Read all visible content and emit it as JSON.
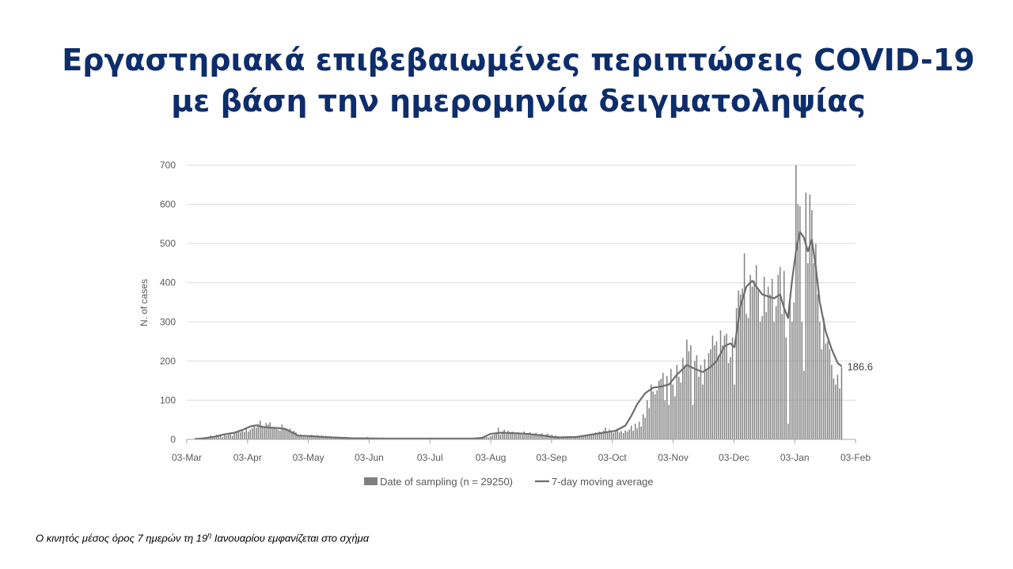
{
  "title": {
    "line1": "Εργαστηριακά επιβεβαιωμένες περιπτώσεις COVID-19",
    "line2": "με βάση την ημερομηνία δειγματοληψίας"
  },
  "footnote": {
    "before": "Ο κινητός μέσος όρος 7 ημερών τη 19",
    "sup": "η",
    "after": " Ιανουαρίου εμφανίζεται στο σχήμα"
  },
  "chart_data": {
    "type": "bar",
    "ylabel": "N. of cases",
    "ylim": [
      0,
      700
    ],
    "yticks": [
      0,
      100,
      200,
      300,
      400,
      500,
      600,
      700
    ],
    "x_range": [
      "2020-03-03",
      "2021-02-03"
    ],
    "xticks": [
      "03-Mar",
      "03-Apr",
      "03-May",
      "03-Jun",
      "03-Jul",
      "03-Aug",
      "03-Sep",
      "03-Oct",
      "03-Nov",
      "03-Dec",
      "03-Jan",
      "03-Feb"
    ],
    "grid": true,
    "legend_position": "bottom",
    "bar_color": "#808080",
    "line_color": "#6d6d6d",
    "series": [
      {
        "name": "Date of sampling (n = 29250)",
        "type": "bar",
        "start_date": "2020-03-07",
        "values": [
          1,
          0,
          2,
          1,
          3,
          2,
          4,
          2,
          10,
          6,
          5,
          12,
          8,
          9,
          6,
          14,
          10,
          12,
          15,
          9,
          17,
          16,
          20,
          18,
          22,
          19,
          31,
          20,
          25,
          28,
          35,
          30,
          40,
          48,
          35,
          30,
          42,
          38,
          44,
          32,
          28,
          30,
          25,
          22,
          38,
          30,
          26,
          24,
          28,
          20,
          22,
          18,
          12,
          10,
          8,
          9,
          6,
          10,
          8,
          12,
          9,
          7,
          11,
          8,
          10,
          7,
          9,
          6,
          8,
          7,
          6,
          5,
          7,
          6,
          5,
          4,
          6,
          5,
          4,
          3,
          5,
          4,
          3,
          4,
          5,
          4,
          3,
          6,
          5,
          4,
          5,
          4,
          3,
          4,
          3,
          5,
          4,
          3,
          4,
          3,
          4,
          3,
          4,
          3,
          3,
          2,
          3,
          4,
          3,
          2,
          3,
          2,
          4,
          3,
          2,
          3,
          2,
          3,
          4,
          3,
          2,
          3,
          2,
          3,
          2,
          3,
          2,
          3,
          2,
          3,
          2,
          3,
          2,
          3,
          2,
          3,
          2,
          3,
          2,
          3,
          3,
          4,
          3,
          4,
          5,
          3,
          4,
          6,
          5,
          8,
          10,
          12,
          18,
          30,
          12,
          20,
          25,
          15,
          22,
          18,
          20,
          16,
          14,
          18,
          15,
          12,
          20,
          14,
          16,
          18,
          13,
          15,
          17,
          12,
          14,
          16,
          11,
          13,
          15,
          10,
          12,
          9,
          10,
          8,
          7,
          6,
          5,
          6,
          4,
          5,
          3,
          4,
          5,
          6,
          7,
          8,
          10,
          9,
          12,
          14,
          15,
          13,
          18,
          16,
          20,
          15,
          22,
          30,
          18,
          25,
          20,
          17,
          22,
          24,
          18,
          21,
          16,
          23,
          20,
          25,
          35,
          22,
          40,
          28,
          45,
          33,
          64,
          55,
          100,
          80,
          140,
          122,
          115,
          125,
          150,
          155,
          170,
          100,
          162,
          88,
          180,
          140,
          110,
          190,
          160,
          145,
          208,
          190,
          255,
          225,
          240,
          88,
          200,
          215,
          160,
          190,
          140,
          205,
          180,
          220,
          230,
          265,
          240,
          250,
          215,
          278,
          240,
          265,
          270,
          195,
          210,
          260,
          140,
          335,
          380,
          370,
          385,
          475,
          320,
          310,
          420,
          390,
          405,
          445,
          380,
          300,
          315,
          415,
          325,
          390,
          370,
          410,
          300,
          340,
          420,
          440,
          320,
          430,
          260,
          40,
          370,
          300,
          350,
          700,
          600,
          595,
          300,
          175,
          630,
          450,
          625,
          585,
          450,
          500,
          370,
          300,
          230,
          310,
          245,
          250,
          230,
          190,
          155,
          140,
          165,
          130,
          185,
          0,
          0,
          0,
          0
        ]
      },
      {
        "name": "7-day moving average",
        "type": "line",
        "points": [
          [
            "2020-03-07",
            1
          ],
          [
            "2020-03-12",
            3
          ],
          [
            "2020-03-17",
            7
          ],
          [
            "2020-03-22",
            13
          ],
          [
            "2020-03-27",
            17
          ],
          [
            "2020-03-31",
            24
          ],
          [
            "2020-04-04",
            33
          ],
          [
            "2020-04-07",
            36
          ],
          [
            "2020-04-10",
            32
          ],
          [
            "2020-04-14",
            30
          ],
          [
            "2020-04-18",
            29
          ],
          [
            "2020-04-22",
            26
          ],
          [
            "2020-04-25",
            18
          ],
          [
            "2020-04-28",
            10
          ],
          [
            "2020-05-05",
            8
          ],
          [
            "2020-05-15",
            5
          ],
          [
            "2020-05-25",
            3
          ],
          [
            "2020-06-10",
            2
          ],
          [
            "2020-06-25",
            2
          ],
          [
            "2020-07-10",
            2
          ],
          [
            "2020-07-25",
            2
          ],
          [
            "2020-07-30",
            4
          ],
          [
            "2020-08-03",
            14
          ],
          [
            "2020-08-08",
            17
          ],
          [
            "2020-08-15",
            16
          ],
          [
            "2020-08-22",
            14
          ],
          [
            "2020-08-29",
            10
          ],
          [
            "2020-09-05",
            5
          ],
          [
            "2020-09-15",
            6
          ],
          [
            "2020-09-25",
            14
          ],
          [
            "2020-10-05",
            22
          ],
          [
            "2020-10-10",
            35
          ],
          [
            "2020-10-13",
            60
          ],
          [
            "2020-10-16",
            90
          ],
          [
            "2020-10-20",
            118
          ],
          [
            "2020-10-24",
            132
          ],
          [
            "2020-10-28",
            135
          ],
          [
            "2020-11-01",
            140
          ],
          [
            "2020-11-05",
            165
          ],
          [
            "2020-11-10",
            190
          ],
          [
            "2020-11-14",
            180
          ],
          [
            "2020-11-18",
            172
          ],
          [
            "2020-11-22",
            185
          ],
          [
            "2020-11-25",
            200
          ],
          [
            "2020-11-29",
            238
          ],
          [
            "2020-12-02",
            245
          ],
          [
            "2020-12-04",
            235
          ],
          [
            "2020-12-07",
            340
          ],
          [
            "2020-12-10",
            390
          ],
          [
            "2020-12-13",
            405
          ],
          [
            "2020-12-15",
            390
          ],
          [
            "2020-12-18",
            370
          ],
          [
            "2020-12-21",
            365
          ],
          [
            "2020-12-24",
            360
          ],
          [
            "2020-12-27",
            370
          ],
          [
            "2020-12-29",
            335
          ],
          [
            "2020-12-31",
            310
          ],
          [
            "2021-01-02",
            405
          ],
          [
            "2021-01-04",
            480
          ],
          [
            "2021-01-06",
            530
          ],
          [
            "2021-01-08",
            515
          ],
          [
            "2021-01-10",
            480
          ],
          [
            "2021-01-12",
            510
          ],
          [
            "2021-01-14",
            440
          ],
          [
            "2021-01-16",
            350
          ],
          [
            "2021-01-19",
            275
          ],
          [
            "2021-01-22",
            230
          ],
          [
            "2021-01-25",
            195
          ],
          [
            "2021-01-27",
            186.6
          ]
        ]
      }
    ],
    "annotations": [
      {
        "text": "186.6",
        "x": "2021-01-27",
        "y": 186.6
      }
    ]
  }
}
